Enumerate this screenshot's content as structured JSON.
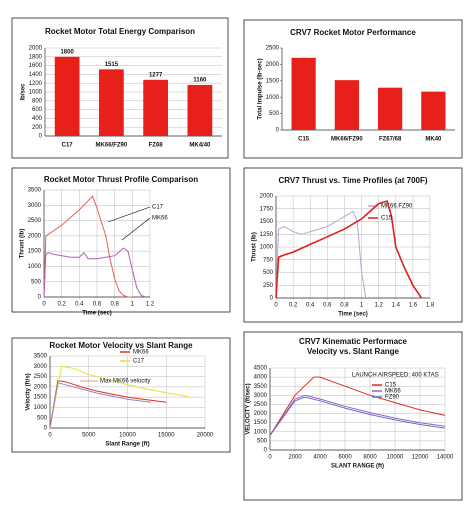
{
  "chart_data": [
    {
      "type": "bar",
      "title": "Rocket Motor Total Energy Comparison",
      "y_label": "lb/sec",
      "categories": [
        "C17",
        "MK66/FZ90",
        "FZ68",
        "MK4/40"
      ],
      "values": [
        1800,
        1515,
        1277,
        1160
      ],
      "color": "#e8201a",
      "ylim": [
        0,
        2000
      ],
      "yticks": [
        0,
        200,
        400,
        600,
        800,
        1000,
        1200,
        1400,
        1600,
        1800,
        2000
      ],
      "grid": true,
      "value_labels_shown": true
    },
    {
      "type": "bar",
      "title": "CRV7 Rocket Motor Performance",
      "y_label": "Total Impulse (lb-sec)",
      "categories": [
        "C15",
        "MK66/FZ90",
        "FZ67/68",
        "MK40"
      ],
      "values": [
        2200,
        1520,
        1290,
        1170
      ],
      "color": "#e8201a",
      "ylim": [
        0,
        2500
      ],
      "yticks": [
        0,
        500,
        1000,
        1500,
        2000,
        2500
      ],
      "grid": false
    },
    {
      "type": "line",
      "title": "Rocket Motor Thrust Profile Comparison",
      "x_label": "Time (sec)",
      "y_label": "Thrust (lb)",
      "xlim": [
        0,
        1.2
      ],
      "xticks": [
        0,
        0.2,
        0.4,
        0.6,
        0.8,
        1,
        1.2
      ],
      "ylim": [
        0,
        3500
      ],
      "yticks": [
        0,
        500,
        1000,
        1500,
        2000,
        2500,
        3000,
        3500
      ],
      "grid": true,
      "series": [
        {
          "name": "C17",
          "color": "#e06060",
          "x": [
            0,
            0.02,
            0.05,
            0.1,
            0.2,
            0.3,
            0.4,
            0.5,
            0.55,
            0.6,
            0.7,
            0.75,
            0.8,
            0.85,
            0.9,
            0.95,
            1.0
          ],
          "values": [
            0,
            2000,
            2050,
            2150,
            2350,
            2600,
            2850,
            3150,
            3300,
            2900,
            2000,
            1200,
            600,
            200,
            50,
            0,
            0
          ]
        },
        {
          "name": "MK66",
          "color": "#b060b0",
          "x": [
            0,
            0.02,
            0.05,
            0.1,
            0.2,
            0.3,
            0.4,
            0.45,
            0.5,
            0.6,
            0.7,
            0.8,
            0.9,
            0.95,
            1.0,
            1.05,
            1.1,
            1.15
          ],
          "values": [
            0,
            1400,
            1450,
            1400,
            1350,
            1300,
            1300,
            1450,
            1250,
            1250,
            1300,
            1350,
            1600,
            1500,
            900,
            300,
            50,
            0
          ]
        }
      ]
    },
    {
      "type": "line",
      "title": "CRV7 Thrust vs. Time Profiles (at 700F)",
      "x_label": "Time (sec)",
      "y_label": "Thrust (lb)",
      "xlim": [
        0,
        1.8
      ],
      "xticks": [
        0,
        0.2,
        0.4,
        0.6,
        0.8,
        1,
        1.2,
        1.4,
        1.6,
        1.8
      ],
      "ylim": [
        0,
        2000
      ],
      "yticks": [
        0,
        250,
        500,
        750,
        1000,
        1250,
        1500,
        1750,
        2000
      ],
      "grid": true,
      "series": [
        {
          "name": "MK66.FZ90",
          "color": "#c0a0d0",
          "x": [
            0,
            0.03,
            0.1,
            0.2,
            0.3,
            0.4,
            0.5,
            0.6,
            0.7,
            0.8,
            0.9,
            0.95,
            1.0,
            1.05
          ],
          "values": [
            0,
            1350,
            1400,
            1300,
            1250,
            1300,
            1350,
            1400,
            1500,
            1600,
            1700,
            1500,
            500,
            0
          ]
        },
        {
          "name": "C15",
          "color": "#e02020",
          "x": [
            0,
            0.03,
            0.1,
            0.2,
            0.4,
            0.6,
            0.8,
            1.0,
            1.2,
            1.3,
            1.35,
            1.4,
            1.5,
            1.6,
            1.7
          ],
          "values": [
            0,
            800,
            850,
            900,
            1050,
            1200,
            1350,
            1550,
            1850,
            1900,
            1600,
            1000,
            600,
            250,
            0
          ]
        }
      ]
    },
    {
      "type": "line",
      "title": "Rocket Motor Velocity vs Slant Range",
      "x_label": "Slant Range (ft)",
      "y_label": "Velocity (ft/s)",
      "annotation": "Max MK66 velocity",
      "xlim": [
        0,
        20000
      ],
      "xticks": [
        0,
        5000,
        10000,
        15000,
        20000
      ],
      "ylim": [
        0,
        3500
      ],
      "yticks": [
        0,
        500,
        1000,
        1500,
        2000,
        2500,
        3000,
        3500
      ],
      "grid": true,
      "series": [
        {
          "name": "MK66",
          "color": "#e03020",
          "x": [
            0,
            1000,
            2000,
            4000,
            6000,
            8000,
            10000,
            12000,
            15000
          ],
          "values": [
            0,
            2300,
            2250,
            2000,
            1800,
            1650,
            1500,
            1400,
            1250
          ]
        },
        {
          "name": "C17",
          "color": "#e8e030",
          "x": [
            0,
            1500,
            3000,
            5000,
            8000,
            10000,
            13000,
            16000,
            18000
          ],
          "values": [
            0,
            3000,
            2900,
            2600,
            2300,
            2100,
            1850,
            1650,
            1500
          ]
        },
        {
          "color": "#a080c0",
          "x": [
            0,
            1000,
            2000,
            4000,
            6000,
            8000,
            10000,
            13000
          ],
          "values": [
            0,
            2200,
            2100,
            1900,
            1700,
            1550,
            1400,
            1250
          ]
        }
      ]
    },
    {
      "type": "line",
      "title": "CRV7 Kinematic Performace",
      "subtitle": "Velocity vs. Slant Range",
      "x_label": "SLANT RANGE (ft)",
      "y_label": "VELOCITY (ft/sec)",
      "annotation": "LAUNCH AIRSPEED: 400 KTAS",
      "xlim": [
        0,
        14000
      ],
      "xticks": [
        0,
        2000,
        4000,
        6000,
        8000,
        10000,
        12000,
        14000
      ],
      "ylim": [
        0,
        4500
      ],
      "yticks": [
        0,
        500,
        1000,
        1500,
        2000,
        2500,
        3000,
        3500,
        4000,
        4500
      ],
      "grid": true,
      "series": [
        {
          "name": "C15",
          "color": "#e03020",
          "x": [
            0,
            2000,
            3500,
            4000,
            6000,
            8000,
            10000,
            12000,
            14000
          ],
          "values": [
            800,
            3000,
            4000,
            4000,
            3500,
            3000,
            2600,
            2200,
            1900
          ]
        },
        {
          "name": "MK66",
          "color": "#a060c0",
          "x": [
            0,
            2000,
            2800,
            4000,
            6000,
            8000,
            10000,
            12000,
            14000
          ],
          "values": [
            800,
            2800,
            3000,
            2800,
            2400,
            2050,
            1750,
            1500,
            1300
          ]
        },
        {
          "name": "FZ90",
          "color": "#6070d0",
          "x": [
            0,
            2000,
            2800,
            4000,
            6000,
            8000,
            10000,
            12000,
            14000
          ],
          "values": [
            800,
            2700,
            2900,
            2700,
            2300,
            1950,
            1650,
            1400,
            1200
          ]
        }
      ]
    }
  ]
}
